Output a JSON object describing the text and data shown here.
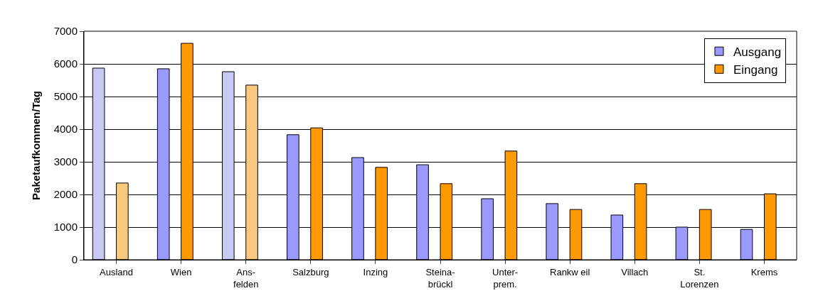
{
  "chart_data": {
    "type": "bar",
    "ylabel": "Paketaufkommen/Tag",
    "categories": [
      "Ausland",
      "Wien",
      "Ans-\nfelden",
      "Salzburg",
      "Inzing",
      "Steina-\nbrückl",
      "Unter-\nprem.",
      "Rankw eil",
      "Villach",
      "St.\nLorenzen",
      "Krems"
    ],
    "series": [
      {
        "name": "Ausgang",
        "color": "#9999ff",
        "colors": [
          "#c8c8f4",
          "#9999ff",
          "#c8c8f4",
          "#9999ff",
          "#9999ff",
          "#9999ff",
          "#9999ff",
          "#9999ff",
          "#9999ff",
          "#9999ff",
          "#9999ff"
        ],
        "values": [
          5870,
          5850,
          5760,
          3830,
          3130,
          2910,
          1870,
          1720,
          1370,
          1000,
          930
        ]
      },
      {
        "name": "Eingang",
        "color": "#ff9900",
        "colors": [
          "#f8c880",
          "#ff9900",
          "#f8c880",
          "#ff9900",
          "#ff9900",
          "#ff9900",
          "#ff9900",
          "#ff9900",
          "#ff9900",
          "#ff9900",
          "#ff9900"
        ],
        "values": [
          2350,
          6630,
          5350,
          4040,
          2830,
          2330,
          3330,
          1540,
          2330,
          1540,
          2020
        ]
      }
    ],
    "ylim": [
      0,
      7000
    ],
    "yticks": [
      0,
      1000,
      2000,
      3000,
      4000,
      5000,
      6000,
      7000
    ],
    "grid": "y",
    "legend": "top right"
  }
}
